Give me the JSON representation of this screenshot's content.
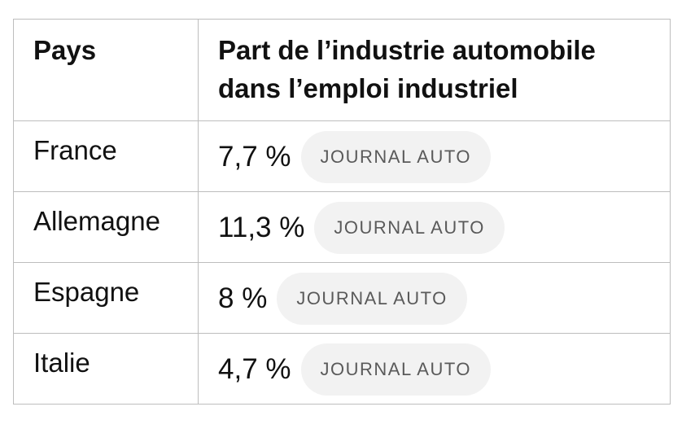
{
  "table": {
    "headers": {
      "country": "Pays",
      "share_line1": "Part de l’industrie automobile",
      "share_line2": "dans l’emploi industriel"
    },
    "rows": [
      {
        "country": "France",
        "share": "7,7 %",
        "source": "JOURNAL AUTO"
      },
      {
        "country": "Allemagne",
        "share": "11,3 %",
        "source": "JOURNAL AUTO"
      },
      {
        "country": "Espagne",
        "share": "8 %",
        "source": "JOURNAL AUTO"
      },
      {
        "country": "Italie",
        "share": "4,7 %",
        "source": "JOURNAL AUTO"
      }
    ]
  }
}
